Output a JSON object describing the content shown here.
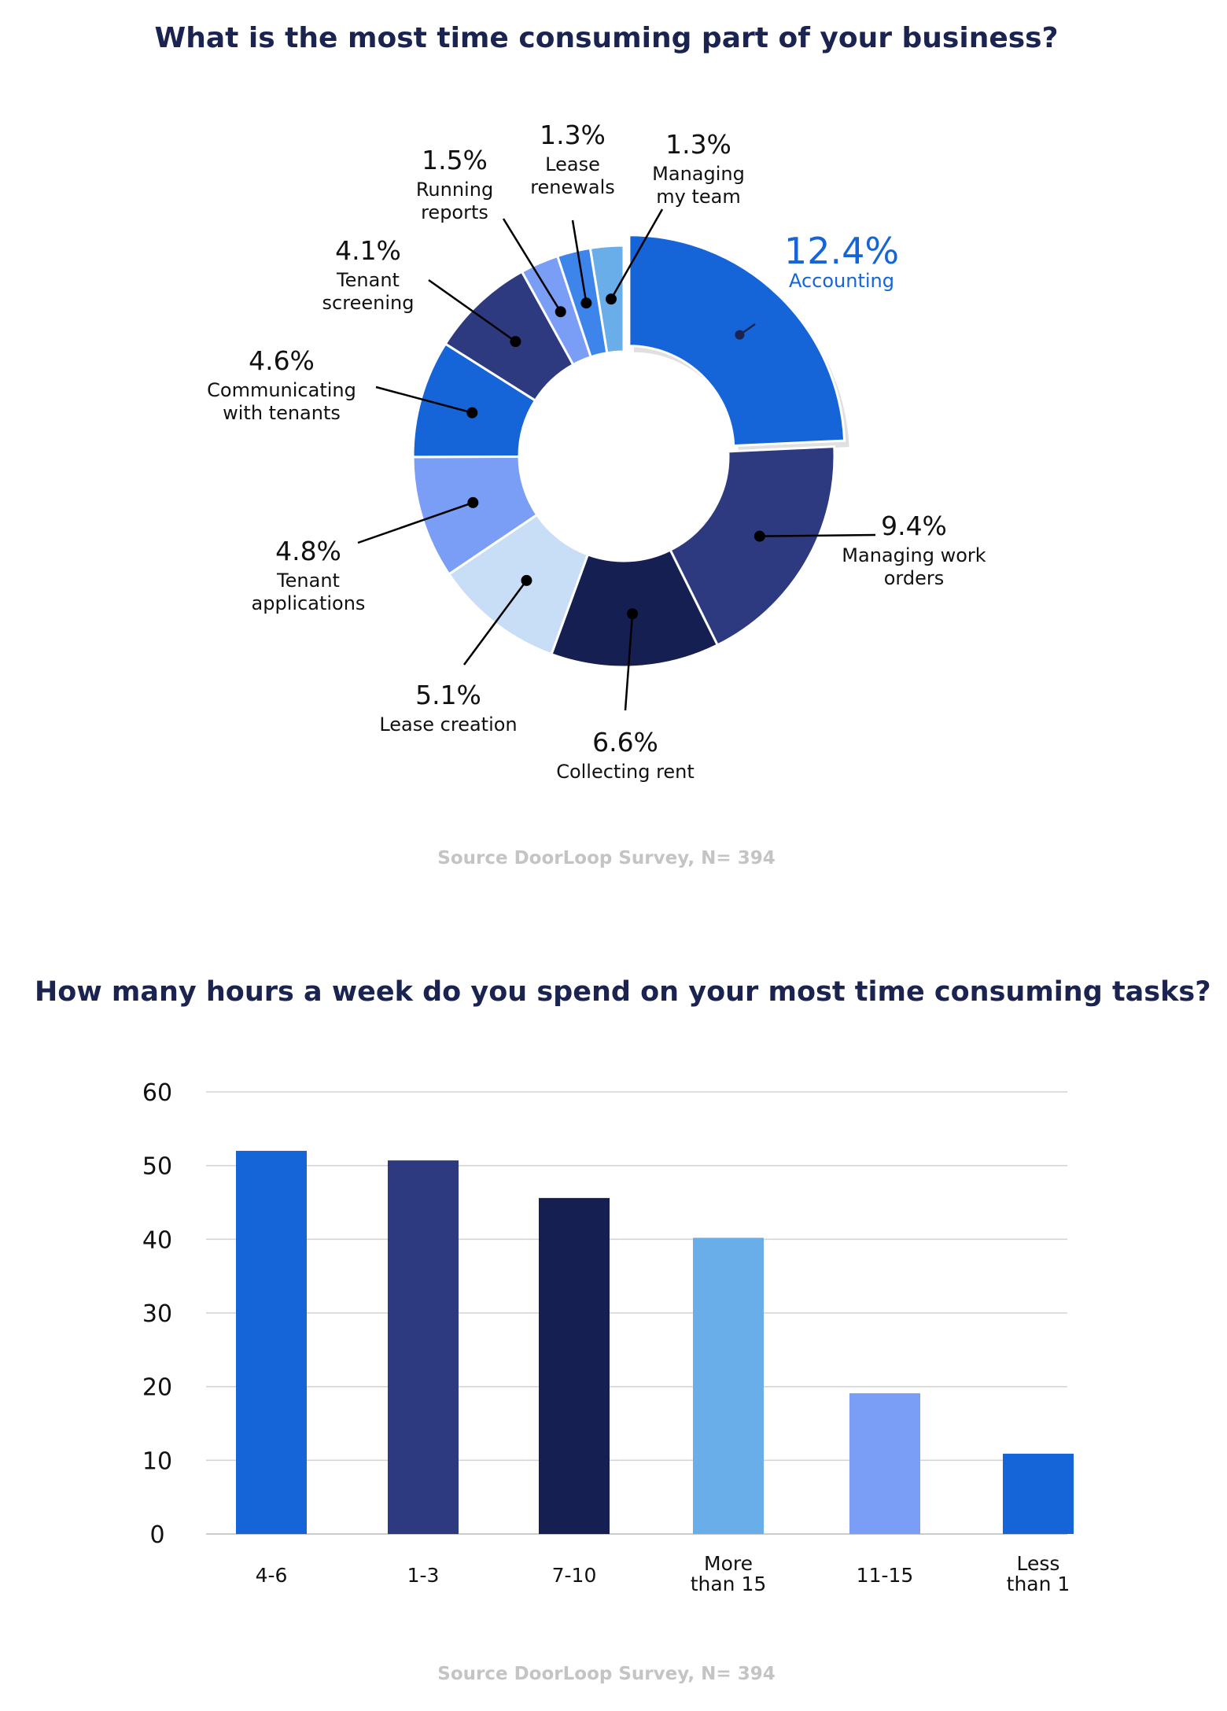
{
  "charts": [
    {
      "title": "What is the most time consuming part of your business?",
      "source": "Source DoorLoop Survey, N= 394",
      "chart_data": {
        "type": "pie",
        "slices": [
          {
            "label": "Accounting",
            "value": 12.4,
            "display": "12.4%",
            "color": "#1565d8"
          },
          {
            "label": "Managing work orders",
            "value": 9.4,
            "display": "9.4%",
            "color": "#2e3a80"
          },
          {
            "label": "Collecting rent",
            "value": 6.6,
            "display": "6.6%",
            "color": "#161f52"
          },
          {
            "label": "Lease creation",
            "value": 5.1,
            "display": "5.1%",
            "color": "#c8def7"
          },
          {
            "label": "Tenant applications",
            "value": 4.8,
            "display": "4.8%",
            "color": "#7a9df5"
          },
          {
            "label": "Communicating with tenants",
            "value": 4.6,
            "display": "4.6%",
            "color": "#1565d8"
          },
          {
            "label": "Tenant screening",
            "value": 4.1,
            "display": "4.1%",
            "color": "#2e3a80"
          },
          {
            "label": "Running reports",
            "value": 1.5,
            "display": "1.5%",
            "color": "#7a9df5"
          },
          {
            "label": "Lease renewals",
            "value": 1.3,
            "display": "1.3%",
            "color": "#3d85ea"
          },
          {
            "label": "Managing my team",
            "value": 1.3,
            "display": "1.3%",
            "color": "#69aee9"
          }
        ]
      }
    },
    {
      "title": "How many hours a week do you spend on your most time consuming tasks?",
      "source": "Source DoorLoop Survey, N= 394",
      "chart_data": {
        "type": "bar",
        "categories": [
          "4-6",
          "1-3",
          "7-10",
          "More than 15",
          "11-15",
          "Less than 1"
        ],
        "values": [
          52,
          50.7,
          45.6,
          40.2,
          19.1,
          10.9
        ],
        "colors": [
          "#1565d8",
          "#2e3a80",
          "#161f52",
          "#69aee9",
          "#7a9df5",
          "#1565d8"
        ],
        "ylim": [
          0,
          60
        ],
        "yticks": [
          0,
          10,
          20,
          30,
          40,
          50,
          60
        ],
        "grid": true
      }
    }
  ]
}
